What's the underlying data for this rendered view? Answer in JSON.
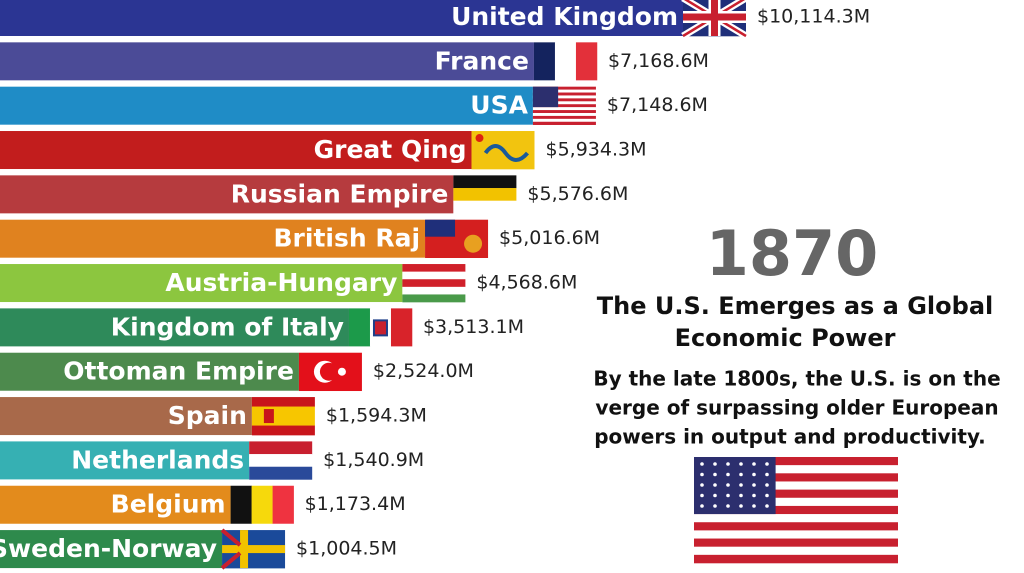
{
  "chart_data": {
    "type": "bar",
    "orientation": "horizontal",
    "categories": [
      "United Kingdom",
      "France",
      "USA",
      "Great Qing",
      "Russian Empire",
      "British Raj",
      "Austria-Hungary",
      "Kingdom of Italy",
      "Ottoman Empire",
      "Spain",
      "Netherlands",
      "Belgium",
      "Sweden-Norway"
    ],
    "values": [
      10114.3,
      7168.6,
      7148.6,
      5934.3,
      5576.6,
      5016.6,
      4568.6,
      3513.1,
      2524.0,
      1594.3,
      1540.9,
      1173.4,
      1004.5
    ],
    "value_labels": [
      "$10,114.3M",
      "$7,168.6M",
      "$7,148.6M",
      "$5,934.3M",
      "$5,576.6M",
      "$5,016.6M",
      "$4,568.6M",
      "$3,513.1M",
      "$2,524.0M",
      "$1,594.3M",
      "$1,540.9M",
      "$1,173.4M",
      "$1,004.5M"
    ],
    "colors": [
      "#2b3593",
      "#4b4b97",
      "#1f8cc6",
      "#c21d1d",
      "#b63b3e",
      "#e0821f",
      "#8cc63f",
      "#2e8a5a",
      "#4d8a4d",
      "#a8694a",
      "#36b0b3",
      "#e38b1c",
      "#2e8a4c"
    ],
    "year": "1870",
    "headline": [
      "The U.S. Emerges as a Global",
      "Economic Power"
    ],
    "body": [
      "By the late 1800s, the U.S. is on the",
      "verge of surpassing older European",
      "powers in output and productivity."
    ]
  }
}
